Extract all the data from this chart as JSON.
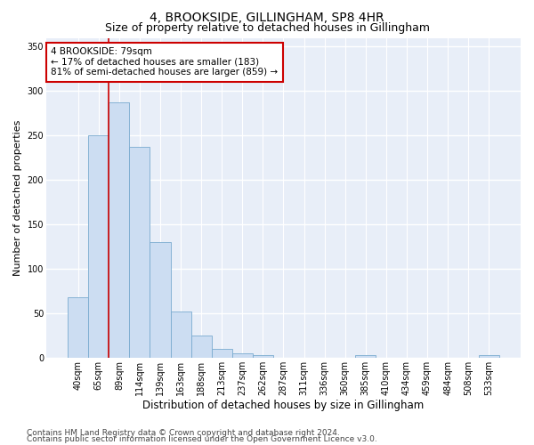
{
  "title": "4, BROOKSIDE, GILLINGHAM, SP8 4HR",
  "subtitle": "Size of property relative to detached houses in Gillingham",
  "xlabel": "Distribution of detached houses by size in Gillingham",
  "ylabel": "Number of detached properties",
  "categories": [
    "40sqm",
    "65sqm",
    "89sqm",
    "114sqm",
    "139sqm",
    "163sqm",
    "188sqm",
    "213sqm",
    "237sqm",
    "262sqm",
    "287sqm",
    "311sqm",
    "336sqm",
    "360sqm",
    "385sqm",
    "410sqm",
    "434sqm",
    "459sqm",
    "484sqm",
    "508sqm",
    "533sqm"
  ],
  "values": [
    68,
    250,
    287,
    237,
    130,
    52,
    25,
    10,
    5,
    3,
    0,
    0,
    0,
    0,
    3,
    0,
    0,
    0,
    0,
    0,
    3
  ],
  "bar_color": "#ccddf2",
  "bar_edge_color": "#7aabcf",
  "annotation_box_text": "4 BROOKSIDE: 79sqm\n← 17% of detached houses are smaller (183)\n81% of semi-detached houses are larger (859) →",
  "annotation_box_color": "#ffffff",
  "annotation_box_edge_color": "#cc0000",
  "vline_color": "#cc0000",
  "vline_x": 1.5,
  "ylim": [
    0,
    360
  ],
  "yticks": [
    0,
    50,
    100,
    150,
    200,
    250,
    300,
    350
  ],
  "background_color": "#e8eef8",
  "grid_color": "#ffffff",
  "footer_line1": "Contains HM Land Registry data © Crown copyright and database right 2024.",
  "footer_line2": "Contains public sector information licensed under the Open Government Licence v3.0.",
  "title_fontsize": 10,
  "subtitle_fontsize": 9,
  "xlabel_fontsize": 8.5,
  "ylabel_fontsize": 8,
  "tick_fontsize": 7,
  "footer_fontsize": 6.5,
  "ann_fontsize": 7.5
}
